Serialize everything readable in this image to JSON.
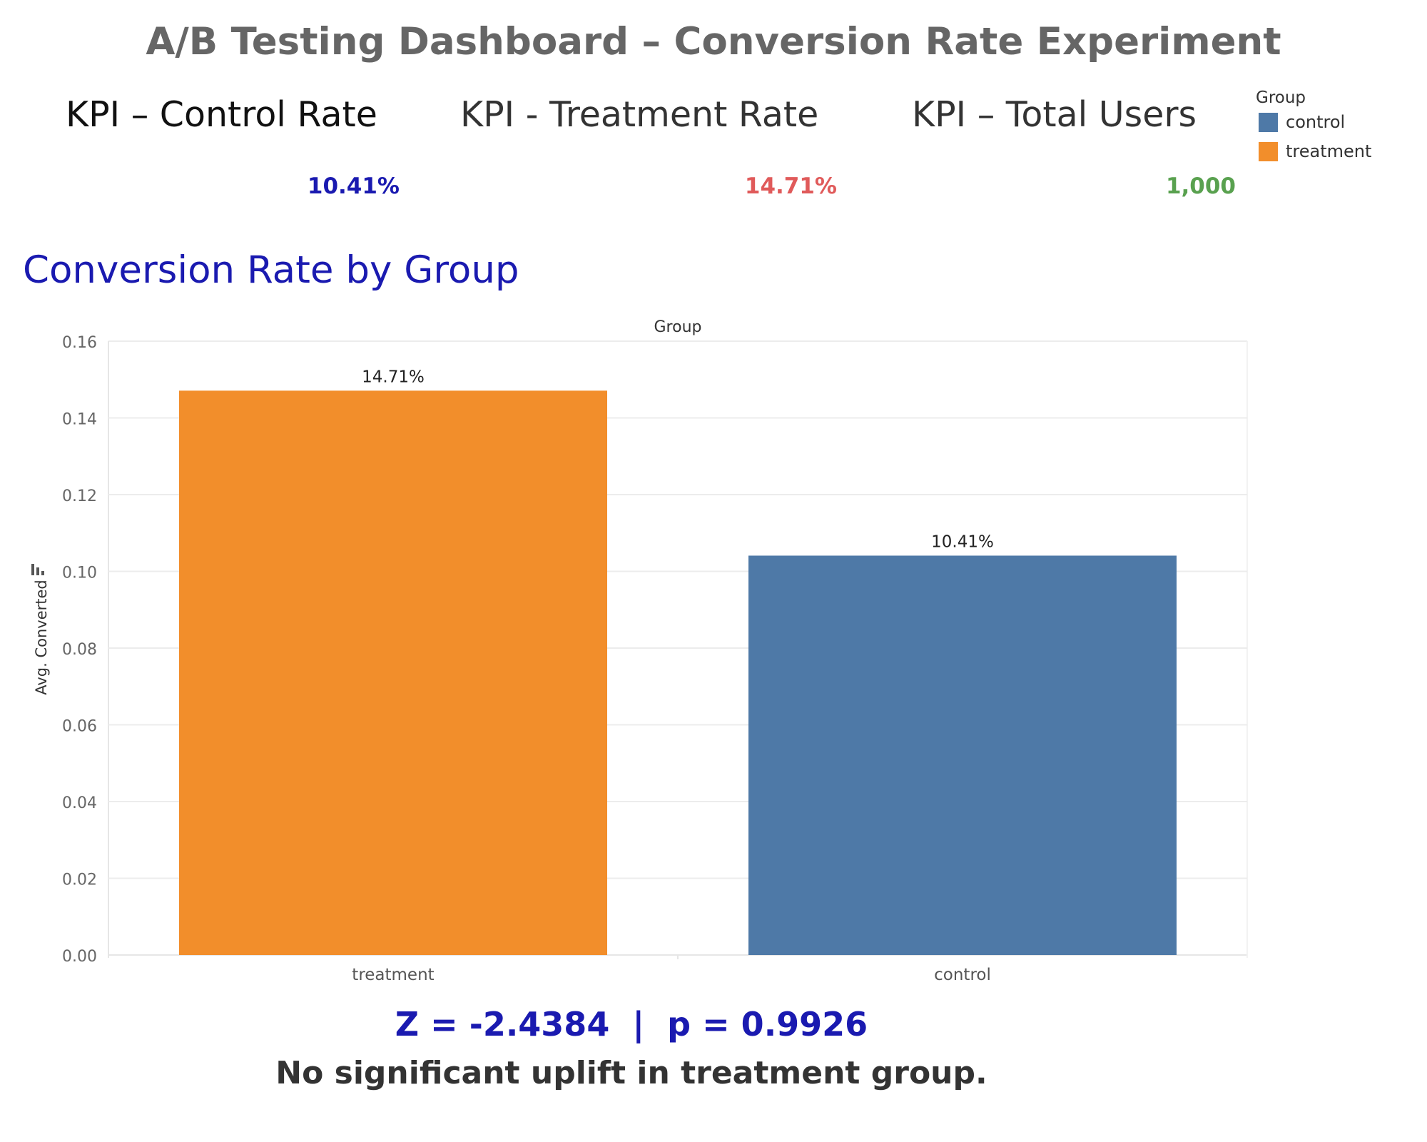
{
  "dashboard": {
    "title": "A/B Testing Dashboard – Conversion Rate Experiment",
    "section_title": "Conversion Rate by Group",
    "stat_line": "Z = -2.4384  |  p = 0.9926",
    "conclusion": "No significant uplift in treatment group."
  },
  "kpis": [
    {
      "label": "KPI – Control Rate",
      "value": "10.41%",
      "color": "#1a1ab0"
    },
    {
      "label": "KPI - Treatment Rate",
      "value": "14.71%",
      "color": "#e05a5a"
    },
    {
      "label": "KPI – Total Users",
      "value": "1,000",
      "color": "#59a14f"
    }
  ],
  "legend": {
    "title": "Group",
    "items": [
      {
        "label": "control",
        "color": "#4e79a7"
      },
      {
        "label": "treatment",
        "color": "#f28e2b"
      }
    ]
  },
  "chart_data": {
    "type": "bar",
    "header": "Group",
    "categories": [
      "treatment",
      "control"
    ],
    "values": [
      0.1471,
      0.1041
    ],
    "data_labels": [
      "14.71%",
      "10.41%"
    ],
    "colors": [
      "#f28e2b",
      "#4e79a7"
    ],
    "ylabel": "Avg. Converted",
    "ylim": [
      0,
      0.16
    ],
    "yticks": [
      0.0,
      0.02,
      0.04,
      0.06,
      0.08,
      0.1,
      0.12,
      0.14,
      0.16
    ],
    "ytick_labels": [
      "0.00",
      "0.02",
      "0.04",
      "0.06",
      "0.08",
      "0.10",
      "0.12",
      "0.14",
      "0.16"
    ],
    "grid": true,
    "legend_position": "top-right"
  }
}
